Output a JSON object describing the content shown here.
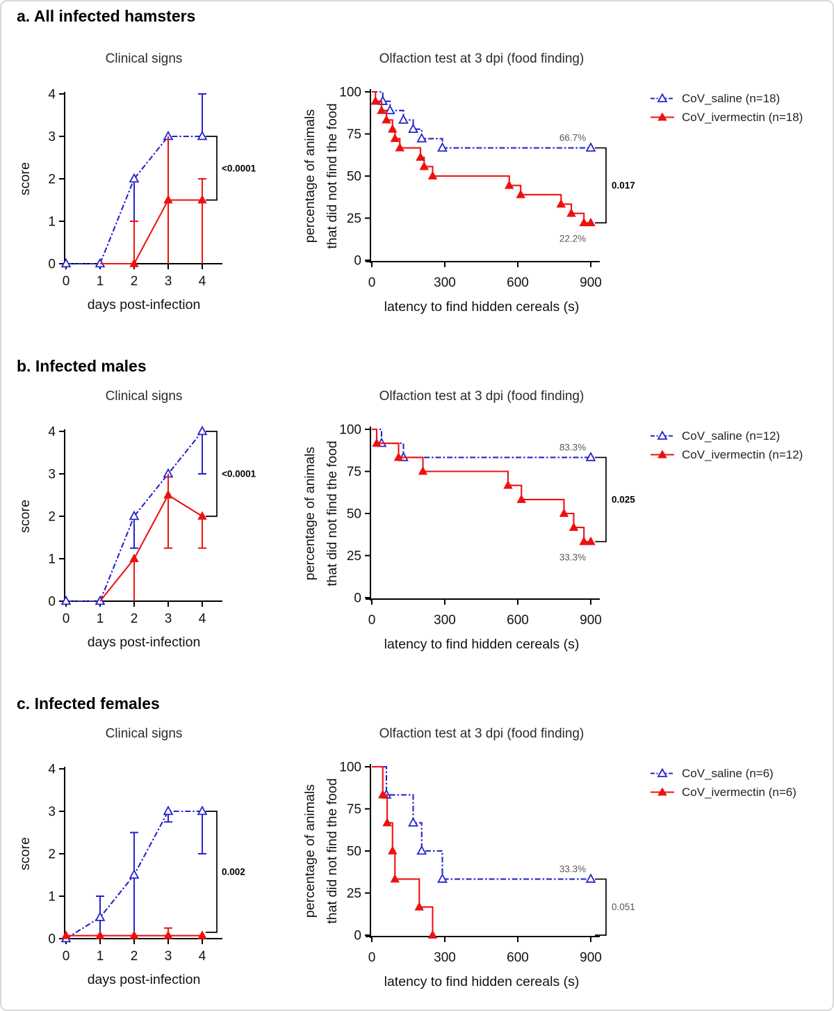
{
  "colors": {
    "saline": "#2424cc",
    "ivermectin": "#ee1111",
    "axis": "#000000",
    "muted": "#595959"
  },
  "figure": {
    "sections": [
      {
        "header": "a. All infected hamsters",
        "legend": [
          {
            "label": "CoV_saline (n=18)",
            "series": "saline"
          },
          {
            "label": "CoV_ivermectin (n=18)",
            "series": "ivermectin"
          }
        ]
      },
      {
        "header": "b. Infected males",
        "legend": [
          {
            "label": "CoV_saline (n=12)",
            "series": "saline"
          },
          {
            "label": "CoV_ivermectin (n=12)",
            "series": "ivermectin"
          }
        ]
      },
      {
        "header": "c. Infected females",
        "legend": [
          {
            "label": "CoV_saline (n=6)",
            "series": "saline"
          },
          {
            "label": "CoV_ivermectin (n=6)",
            "series": "ivermectin"
          }
        ]
      }
    ]
  },
  "chart_data": [
    {
      "id": "clinical-a",
      "type": "line",
      "panel": "a",
      "title": "Clinical signs",
      "xlabel": "days post-infection",
      "ylabel": "score",
      "xticks": [
        0,
        1,
        2,
        3,
        4
      ],
      "yticks": [
        0,
        1,
        2,
        3,
        4
      ],
      "xlim": [
        0,
        4
      ],
      "ylim": [
        0,
        4
      ],
      "pvalue": "<0.0001",
      "pvalue_style": "bold",
      "bracket": {
        "top": 3,
        "bottom": 1.5
      },
      "series": [
        {
          "key": "saline",
          "name": "CoV_saline",
          "line": "dashdot",
          "marker": "open",
          "points": [
            [
              0,
              0
            ],
            [
              1,
              0
            ],
            [
              2,
              2
            ],
            [
              3,
              3
            ],
            [
              4,
              3
            ]
          ],
          "markers": [
            [
              0,
              0
            ],
            [
              1,
              0
            ],
            [
              2,
              2
            ],
            [
              3,
              3
            ],
            [
              4,
              3
            ]
          ],
          "errors": [
            {
              "x": 2,
              "lo": 1,
              "hi": 2,
              "caps": "lo"
            },
            {
              "x": 4,
              "lo": 3,
              "hi": 4,
              "caps": "hi"
            }
          ]
        },
        {
          "key": "ivermectin",
          "name": "CoV_ivermectin",
          "line": "solid",
          "marker": "filled",
          "points": [
            [
              1,
              0
            ],
            [
              2,
              0
            ],
            [
              3,
              1.5
            ],
            [
              4,
              1.5
            ]
          ],
          "markers": [
            [
              2,
              0
            ],
            [
              3,
              1.5
            ],
            [
              4,
              1.5
            ]
          ],
          "errors": [
            {
              "x": 2,
              "lo": 0,
              "hi": 1,
              "caps": "hi"
            },
            {
              "x": 3,
              "lo": 0,
              "hi": 3,
              "caps": ""
            },
            {
              "x": 4,
              "lo": 0,
              "hi": 2,
              "caps": "hi"
            }
          ]
        }
      ]
    },
    {
      "id": "olfaction-a",
      "type": "step",
      "panel": "a",
      "title": "Olfaction test at 3 dpi (food finding)",
      "xlabel": "latency to find hidden cereals (s)",
      "ylabel_lines": [
        "percentage of animals",
        "that did not find the food"
      ],
      "xticks": [
        0,
        300,
        600,
        900
      ],
      "yticks": [
        0,
        25,
        50,
        75,
        100
      ],
      "xlim": [
        0,
        900
      ],
      "ylim": [
        0,
        100
      ],
      "pvalue": "0.017",
      "pvalue_style": "bold",
      "bracket": {
        "top": 66.7,
        "bottom": 22.2
      },
      "series": [
        {
          "key": "saline",
          "name": "CoV_saline",
          "line": "dashdot",
          "marker": "open",
          "start_y": 100,
          "drops": [
            [
              45,
              94.4
            ],
            [
              75,
              88.9
            ],
            [
              130,
              83.3
            ],
            [
              170,
              77.8
            ],
            [
              205,
              72.2
            ],
            [
              290,
              66.7
            ]
          ],
          "end_x": 900,
          "end_marker": true,
          "end_label": {
            "text": "66.7%",
            "pos": "above"
          }
        },
        {
          "key": "ivermectin",
          "name": "CoV_ivermectin",
          "line": "solid",
          "marker": "filled",
          "start_y": 100,
          "drops": [
            [
              15,
              94.4
            ],
            [
              40,
              88.9
            ],
            [
              60,
              83.3
            ],
            [
              85,
              77.8
            ],
            [
              95,
              72.2
            ],
            [
              115,
              66.7
            ],
            [
              200,
              61.1
            ],
            [
              215,
              55.6
            ],
            [
              250,
              50
            ],
            [
              565,
              44.4
            ],
            [
              612,
              38.9
            ],
            [
              778,
              33.3
            ],
            [
              820,
              27.8
            ],
            [
              872,
              22.2
            ]
          ],
          "end_x": 900,
          "end_marker": true,
          "end_label": {
            "text": "22.2%",
            "pos": "below"
          }
        }
      ]
    },
    {
      "id": "clinical-b",
      "type": "line",
      "panel": "b",
      "title": "Clinical signs",
      "xlabel": "days post-infection",
      "ylabel": "score",
      "xticks": [
        0,
        1,
        2,
        3,
        4
      ],
      "yticks": [
        0,
        1,
        2,
        3,
        4
      ],
      "xlim": [
        0,
        4
      ],
      "ylim": [
        0,
        4
      ],
      "pvalue": "<0.0001",
      "pvalue_style": "bold",
      "bracket": {
        "top": 4,
        "bottom": 2
      },
      "series": [
        {
          "key": "saline",
          "name": "CoV_saline",
          "line": "dashdot",
          "marker": "open",
          "points": [
            [
              0,
              0
            ],
            [
              1,
              0
            ],
            [
              2,
              2
            ],
            [
              3,
              3
            ],
            [
              4,
              4
            ]
          ],
          "markers": [
            [
              0,
              0
            ],
            [
              1,
              0
            ],
            [
              2,
              2
            ],
            [
              3,
              3
            ],
            [
              4,
              4
            ]
          ],
          "errors": [
            {
              "x": 2,
              "lo": 1.25,
              "hi": 2,
              "caps": "lo"
            },
            {
              "x": 4,
              "lo": 3,
              "hi": 4,
              "caps": "lo"
            }
          ]
        },
        {
          "key": "ivermectin",
          "name": "CoV_ivermectin",
          "line": "solid",
          "marker": "filled",
          "points": [
            [
              1,
              0
            ],
            [
              2,
              1
            ],
            [
              3,
              2.5
            ],
            [
              4,
              2
            ]
          ],
          "markers": [
            [
              2,
              1
            ],
            [
              3,
              2.5
            ],
            [
              4,
              2
            ]
          ],
          "errors": [
            {
              "x": 2,
              "lo": 0,
              "hi": 1,
              "caps": ""
            },
            {
              "x": 3,
              "lo": 1.25,
              "hi": 3,
              "caps": "lo"
            },
            {
              "x": 4,
              "lo": 1.25,
              "hi": 2,
              "caps": "lo"
            }
          ]
        }
      ]
    },
    {
      "id": "olfaction-b",
      "type": "step",
      "panel": "b",
      "title": "Olfaction test at 3 dpi (food finding)",
      "xlabel": "latency to find hidden cereals (s)",
      "ylabel_lines": [
        "percentage of animals",
        "that did not find the food"
      ],
      "xticks": [
        0,
        300,
        600,
        900
      ],
      "yticks": [
        0,
        25,
        50,
        75,
        100
      ],
      "xlim": [
        0,
        900
      ],
      "ylim": [
        0,
        100
      ],
      "pvalue": "0.025",
      "pvalue_style": "bold",
      "bracket": {
        "top": 83.3,
        "bottom": 33.3
      },
      "series": [
        {
          "key": "saline",
          "name": "CoV_saline",
          "line": "dashdot",
          "marker": "open",
          "start_y": 100,
          "drops": [
            [
              40,
              91.7
            ],
            [
              130,
              83.3
            ]
          ],
          "end_x": 900,
          "end_marker": true,
          "end_label": {
            "text": "83.3%",
            "pos": "above"
          }
        },
        {
          "key": "ivermectin",
          "name": "CoV_ivermectin",
          "line": "solid",
          "marker": "filled",
          "start_y": 100,
          "drops": [
            [
              20,
              91.7
            ],
            [
              110,
              83.3
            ],
            [
              210,
              75
            ],
            [
              560,
              66.7
            ],
            [
              615,
              58.3
            ],
            [
              790,
              50
            ],
            [
              830,
              41.7
            ],
            [
              872,
              33.3
            ]
          ],
          "end_x": 900,
          "end_marker": true,
          "end_label": {
            "text": "33.3%",
            "pos": "below"
          }
        }
      ]
    },
    {
      "id": "clinical-c",
      "type": "line",
      "panel": "c",
      "title": "Clinical signs",
      "xlabel": "days post-infection",
      "ylabel": "score",
      "xticks": [
        0,
        1,
        2,
        3,
        4
      ],
      "yticks": [
        0,
        1,
        2,
        3,
        4
      ],
      "xlim": [
        0,
        4
      ],
      "ylim": [
        0,
        4
      ],
      "pvalue": "0.002",
      "pvalue_style": "bold",
      "bracket": {
        "top": 3,
        "bottom": 0.15
      },
      "series": [
        {
          "key": "saline",
          "name": "CoV_saline",
          "line": "dashdot",
          "marker": "open",
          "points": [
            [
              0,
              0
            ],
            [
              1,
              0.5
            ],
            [
              2,
              1.5
            ],
            [
              3,
              3
            ],
            [
              4,
              3
            ]
          ],
          "markers": [
            [
              0,
              0
            ],
            [
              1,
              0.5
            ],
            [
              2,
              1.5
            ],
            [
              3,
              3
            ],
            [
              4,
              3
            ]
          ],
          "errors": [
            {
              "x": 1,
              "lo": 0,
              "hi": 1,
              "caps": "hi"
            },
            {
              "x": 2,
              "lo": 0,
              "hi": 2.5,
              "caps": "hi"
            },
            {
              "x": 3,
              "lo": 2.75,
              "hi": 3,
              "caps": "lo"
            },
            {
              "x": 4,
              "lo": 2,
              "hi": 3,
              "caps": "lo"
            }
          ]
        },
        {
          "key": "ivermectin",
          "name": "CoV_ivermectin",
          "line": "solid",
          "marker": "filled",
          "points": [
            [
              0,
              0.07
            ],
            [
              1,
              0.07
            ],
            [
              2,
              0.07
            ],
            [
              3,
              0.07
            ],
            [
              4,
              0.07
            ]
          ],
          "markers": [
            [
              0,
              0.07
            ],
            [
              1,
              0.07
            ],
            [
              2,
              0.07
            ],
            [
              3,
              0.07
            ],
            [
              4,
              0.07
            ]
          ],
          "errors": [
            {
              "x": 3,
              "lo": 0.07,
              "hi": 0.25,
              "caps": "hi"
            }
          ]
        }
      ]
    },
    {
      "id": "olfaction-c",
      "type": "step",
      "panel": "c",
      "title": "Olfaction test at 3 dpi (food finding)",
      "xlabel": "latency to find hidden cereals (s)",
      "ylabel_lines": [
        "percentage of animals",
        "that did not find the food"
      ],
      "xticks": [
        0,
        300,
        600,
        900
      ],
      "yticks": [
        0,
        25,
        50,
        75,
        100
      ],
      "xlim": [
        0,
        900
      ],
      "ylim": [
        0,
        100
      ],
      "pvalue": "0.051",
      "pvalue_style": "gray",
      "bracket": {
        "top": 33.3,
        "bottom": 0
      },
      "series": [
        {
          "key": "saline",
          "name": "CoV_saline",
          "line": "dashdot",
          "marker": "open",
          "start_y": 100,
          "drops": [
            [
              60,
              83.3
            ],
            [
              170,
              66.7
            ],
            [
              205,
              50
            ],
            [
              290,
              33.3
            ]
          ],
          "end_x": 900,
          "end_marker": true,
          "end_label": {
            "text": "33.3%",
            "pos": "above"
          }
        },
        {
          "key": "ivermectin",
          "name": "CoV_ivermectin",
          "line": "solid",
          "marker": "filled",
          "start_y": 100,
          "drops": [
            [
              45,
              83.3
            ],
            [
              63,
              66.7
            ],
            [
              85,
              50
            ],
            [
              95,
              33.3
            ],
            [
              195,
              16.7
            ],
            [
              250,
              0
            ]
          ],
          "end_x": 256,
          "end_marker": false
        }
      ]
    }
  ]
}
